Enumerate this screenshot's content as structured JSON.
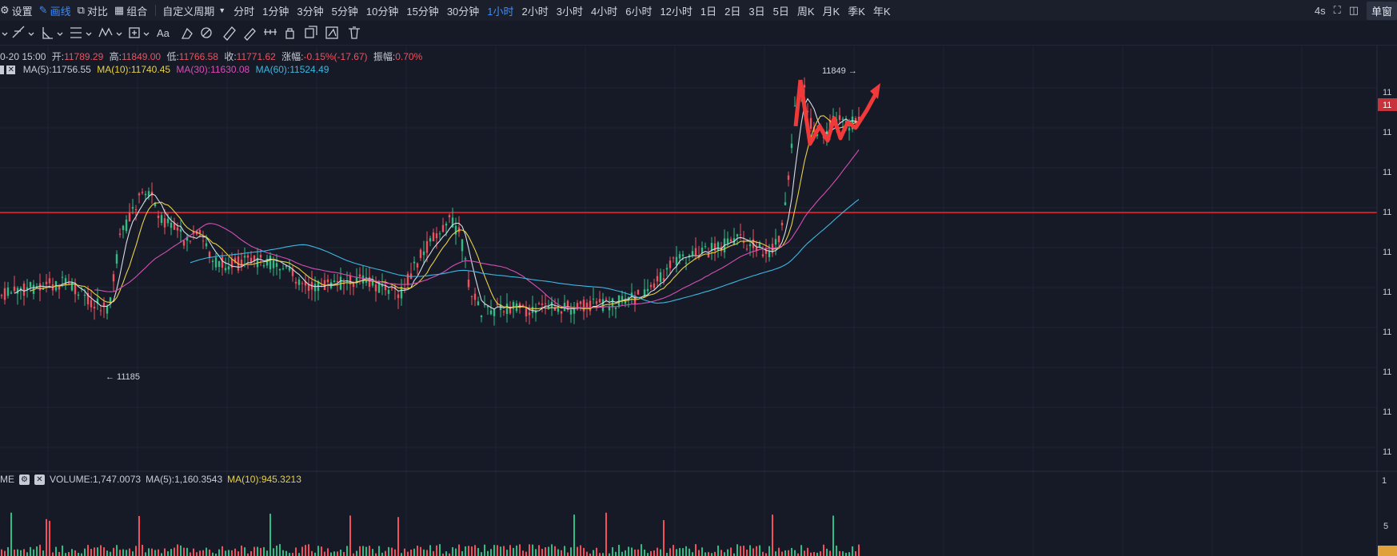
{
  "toolbar": {
    "settings_label": "设置",
    "draw_label": "画线",
    "compare_label": "对比",
    "combine_label": "组合",
    "custom_period_label": "自定义周期",
    "periods": [
      "分时",
      "1分钟",
      "3分钟",
      "5分钟",
      "10分钟",
      "15分钟",
      "30分钟",
      "1小时",
      "2小时",
      "3小时",
      "4小时",
      "6小时",
      "12小时",
      "1日",
      "2日",
      "3日",
      "5日",
      "周K",
      "月K",
      "季K",
      "年K"
    ],
    "active_period": "1小时",
    "refresh_interval": "4s",
    "window_mode_label": "单窗"
  },
  "drawing_tools": {
    "font_tool_label": "Aa"
  },
  "ohlc": {
    "time": "0-20 15:00",
    "open_label": "开:",
    "open": "11789.29",
    "high_label": "高:",
    "high": "11849.00",
    "low_label": "低:",
    "low": "11766.58",
    "close_label": "收:",
    "close": "11771.62",
    "change_label": "涨幅:",
    "change": "-0.15%(-17.67)",
    "amplitude_label": "振幅:",
    "amplitude": "0.70%"
  },
  "ma": {
    "ma5": "MA(5):11756.55",
    "ma10": "MA(10):11740.45",
    "ma30": "MA(30):11630.08",
    "ma60": "MA(60):11524.49"
  },
  "volume": {
    "indicator_label": "ME",
    "volume": "VOLUME:1,747.0073",
    "ma5": "MA(5):1,160.3543",
    "ma10": "MA(10):945.3213"
  },
  "annotations": {
    "high_marker": "11849 →",
    "low_marker": "← 11185"
  },
  "price_axis": {
    "labels": [
      "11",
      "11",
      "11",
      "11",
      "11",
      "11",
      "11",
      "11",
      "11",
      "11"
    ],
    "current_price_tag": "11",
    "volume_labels": [
      "1",
      "5"
    ]
  },
  "colors": {
    "background": "#161a27",
    "up": "#2ebd85",
    "down": "#f0515c",
    "accent": "#3a8cff",
    "ma5": "#d8dce6",
    "ma10": "#e8d046",
    "ma30": "#d54fb5",
    "ma60": "#3fb6e0",
    "horizontal_line": "#c81e2a",
    "arrow": "#f03a3a"
  }
}
